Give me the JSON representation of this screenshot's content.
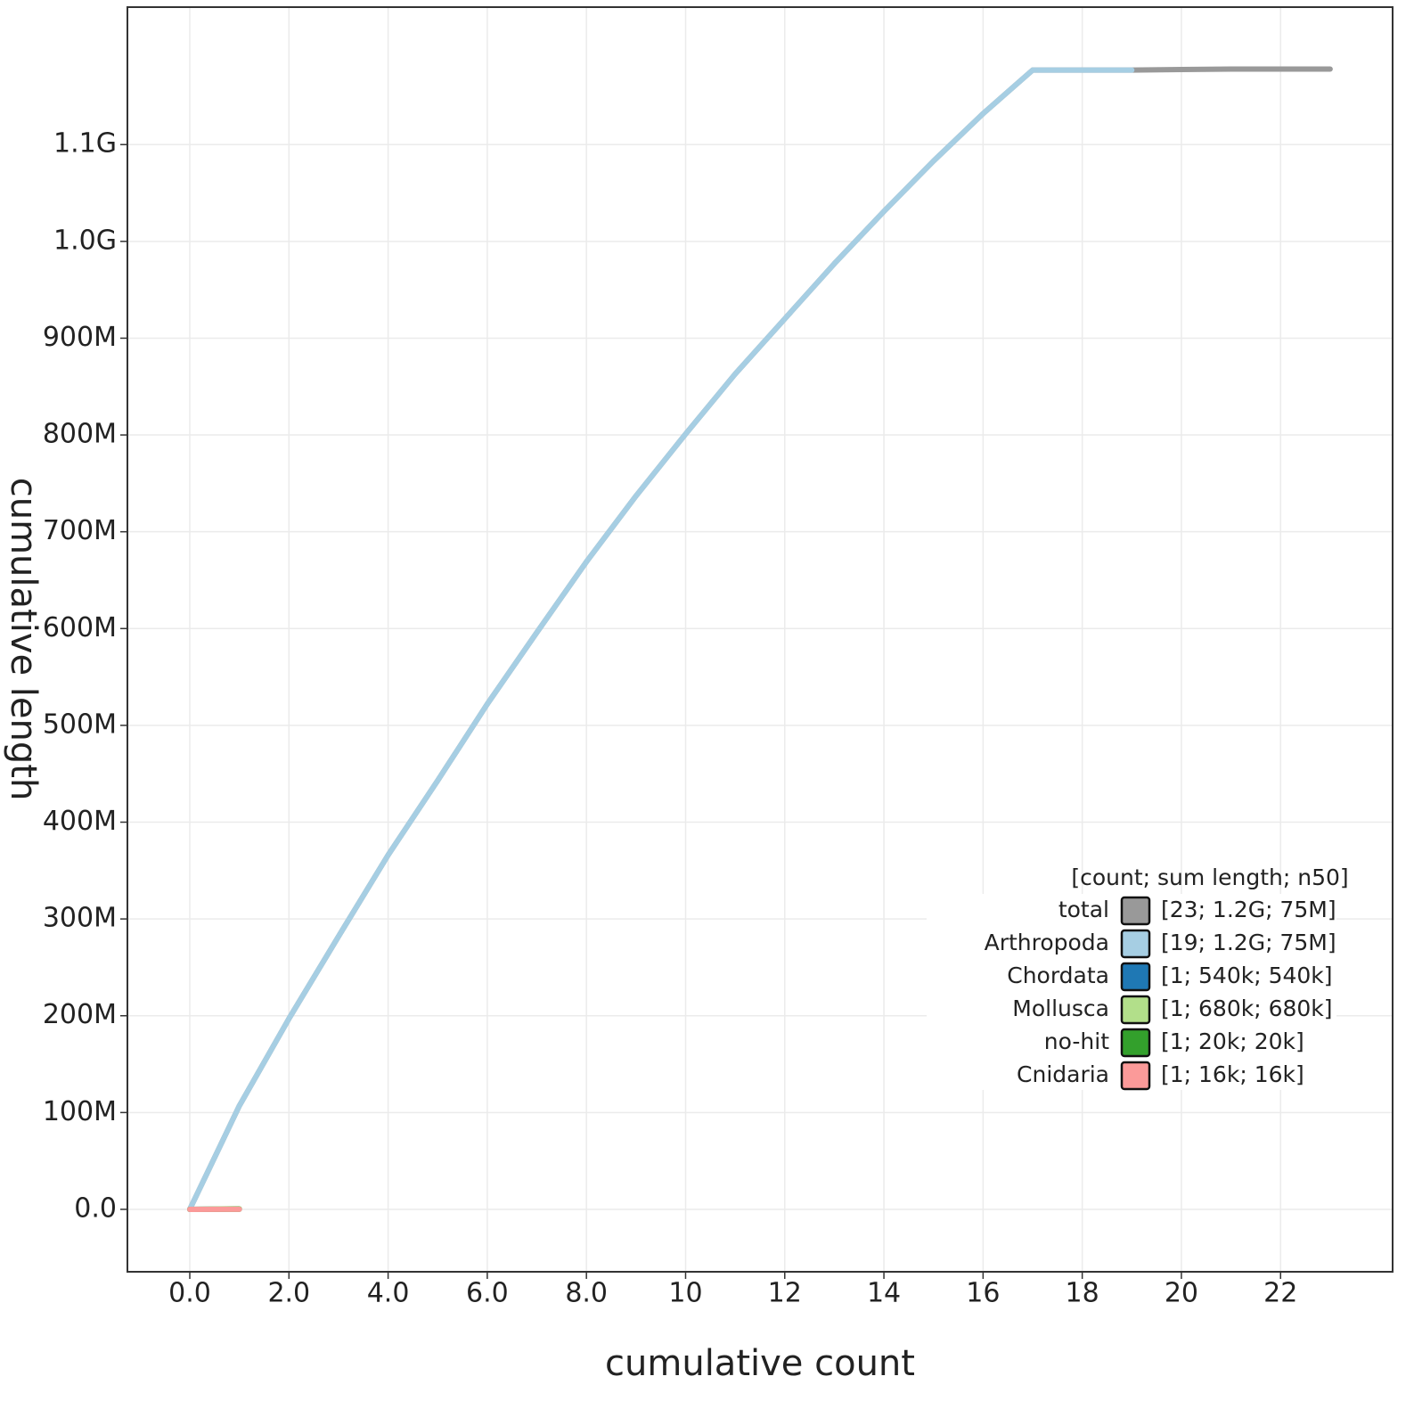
{
  "chart_data": {
    "type": "line",
    "xlabel": "cumulative count",
    "ylabel": "cumulative length",
    "xlim": [
      -1.258,
      24.26
    ],
    "ylim": [
      -64500000,
      1242000000
    ],
    "xticks": [
      {
        "value": 0,
        "label": "0.0"
      },
      {
        "value": 2,
        "label": "2.0"
      },
      {
        "value": 4,
        "label": "4.0"
      },
      {
        "value": 6,
        "label": "6.0"
      },
      {
        "value": 8,
        "label": "8.0"
      },
      10,
      12,
      14,
      16,
      18,
      20,
      22
    ],
    "yticks": [
      {
        "value": 0,
        "label": "0.0"
      },
      {
        "value": 100000000,
        "label": "100M"
      },
      {
        "value": 200000000,
        "label": "200M"
      },
      {
        "value": 300000000,
        "label": "300M"
      },
      {
        "value": 400000000,
        "label": "400M"
      },
      {
        "value": 500000000,
        "label": "500M"
      },
      {
        "value": 600000000,
        "label": "600M"
      },
      {
        "value": 700000000,
        "label": "700M"
      },
      {
        "value": 800000000,
        "label": "800M"
      },
      {
        "value": 900000000,
        "label": "900M"
      },
      {
        "value": 1000000000,
        "label": "1.0G"
      },
      {
        "value": 1100000000,
        "label": "1.1G"
      }
    ],
    "grid": true,
    "legend_title": "[count; sum length; n50]",
    "legend_position": "lower right",
    "series": [
      {
        "name": "total",
        "color": "#999999",
        "stats": "[23; 1.2G; 75M]",
        "x": [
          0,
          1,
          2,
          3,
          4,
          5,
          6,
          7,
          8,
          9,
          10,
          11,
          12,
          13,
          14,
          15,
          16,
          17,
          18,
          19,
          20,
          21,
          22,
          23
        ],
        "values": [
          0,
          107000000,
          197000000,
          282000000,
          366000000,
          443000000,
          522000000,
          596000000,
          669000000,
          737000000,
          801000000,
          863000000,
          920000000,
          977000000,
          1031000000,
          1083000000,
          1132000000,
          1177000000,
          1177000000,
          1177000000,
          1177500000,
          1178000000,
          1178000000,
          1178000000
        ]
      },
      {
        "name": "Arthropoda",
        "color": "#a6cee3",
        "stats": "[19; 1.2G; 75M]",
        "x": [
          0,
          1,
          2,
          3,
          4,
          5,
          6,
          7,
          8,
          9,
          10,
          11,
          12,
          13,
          14,
          15,
          16,
          17,
          18,
          19
        ],
        "values": [
          0,
          107000000,
          197000000,
          282000000,
          366000000,
          443000000,
          522000000,
          596000000,
          669000000,
          737000000,
          801000000,
          863000000,
          920000000,
          977000000,
          1031000000,
          1083000000,
          1132000000,
          1177000000,
          1177000000,
          1177000000
        ]
      },
      {
        "name": "Chordata",
        "color": "#1f78b4",
        "stats": "[1; 540k; 540k]",
        "x": [
          0,
          1
        ],
        "values": [
          0,
          540000
        ]
      },
      {
        "name": "Mollusca",
        "color": "#b2df8a",
        "stats": "[1; 680k; 680k]",
        "x": [
          0,
          1
        ],
        "values": [
          0,
          680000
        ]
      },
      {
        "name": "no-hit",
        "color": "#33a02c",
        "stats": "[1; 20k; 20k]",
        "x": [
          0,
          1
        ],
        "values": [
          0,
          20000
        ]
      },
      {
        "name": "Cnidaria",
        "color": "#fb9a99",
        "stats": "[1; 16k; 16k]",
        "x": [
          0,
          1
        ],
        "values": [
          0,
          16000
        ]
      }
    ]
  }
}
